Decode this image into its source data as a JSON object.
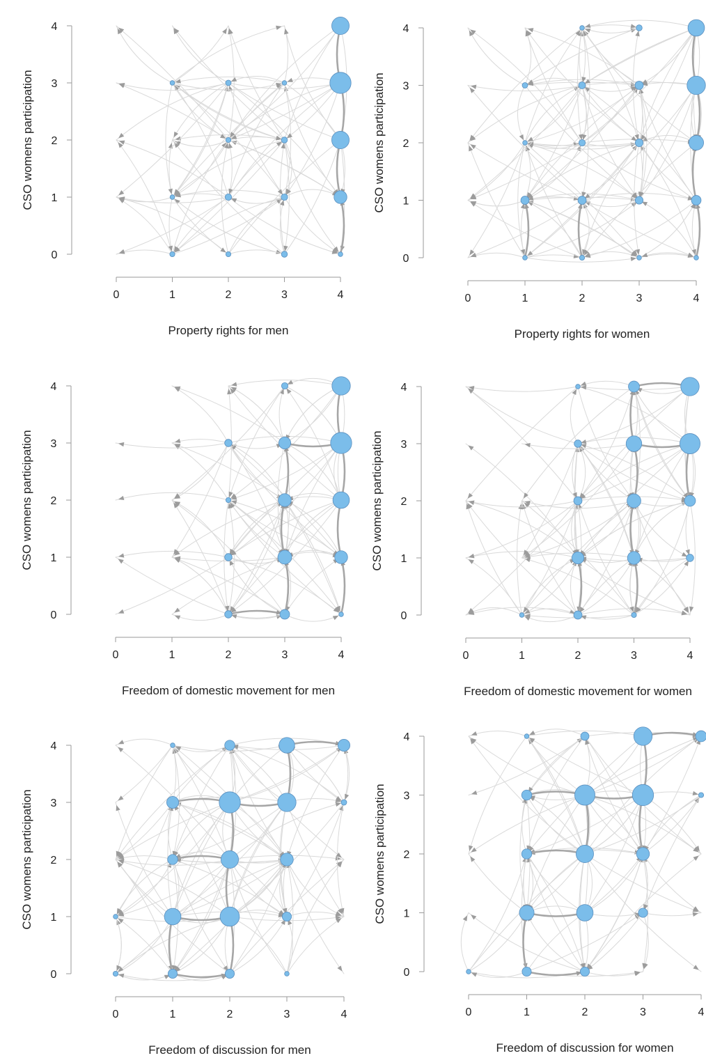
{
  "colors": {
    "node_fill": "#7bbdea",
    "node_stroke": "#5a8fbf",
    "edge_light": "#d9d9d9",
    "edge_dark": "#a6a6a6",
    "arrow": "#9c9c9c",
    "axis": "#9a9a9a"
  },
  "chart_data": [
    {
      "type": "network-grid",
      "xlabel": "Property rights for men",
      "ylabel": "CSO womens participation",
      "xticks": [
        "0",
        "1",
        "2",
        "3",
        "4"
      ],
      "yticks": [
        "0",
        "1",
        "2",
        "3",
        "4"
      ],
      "xlim": [
        0,
        4
      ],
      "ylim": [
        0,
        4
      ],
      "nodes": [
        {
          "x": 1,
          "y": 0,
          "size": 0.5
        },
        {
          "x": 2,
          "y": 0,
          "size": 0.5
        },
        {
          "x": 3,
          "y": 0,
          "size": 0.7
        },
        {
          "x": 4,
          "y": 0,
          "size": 0.4
        },
        {
          "x": 1,
          "y": 1,
          "size": 0.4
        },
        {
          "x": 2,
          "y": 1,
          "size": 0.8
        },
        {
          "x": 3,
          "y": 1,
          "size": 0.8
        },
        {
          "x": 4,
          "y": 1,
          "size": 2.2
        },
        {
          "x": 2,
          "y": 2,
          "size": 0.5
        },
        {
          "x": 3,
          "y": 2,
          "size": 0.7
        },
        {
          "x": 4,
          "y": 2,
          "size": 3.2
        },
        {
          "x": 1,
          "y": 3,
          "size": 0.4
        },
        {
          "x": 2,
          "y": 3,
          "size": 0.6
        },
        {
          "x": 3,
          "y": 3,
          "size": 0.4
        },
        {
          "x": 4,
          "y": 3,
          "size": 4.0
        },
        {
          "x": 4,
          "y": 4,
          "size": 3.2
        }
      ],
      "heavy_edges": [
        [
          4,
          0,
          4,
          1
        ],
        [
          4,
          1,
          4,
          2
        ],
        [
          4,
          2,
          4,
          3
        ],
        [
          4,
          3,
          4,
          4
        ]
      ]
    },
    {
      "type": "network-grid",
      "xlabel": "Property rights for women",
      "ylabel": "CSO womens participation",
      "xticks": [
        "0",
        "1",
        "2",
        "3",
        "4"
      ],
      "yticks": [
        "0",
        "1",
        "2",
        "3",
        "4"
      ],
      "xlim": [
        0,
        4
      ],
      "ylim": [
        0,
        4
      ],
      "nodes": [
        {
          "x": 1,
          "y": 0,
          "size": 0.4
        },
        {
          "x": 2,
          "y": 0,
          "size": 0.5
        },
        {
          "x": 3,
          "y": 0,
          "size": 0.4
        },
        {
          "x": 4,
          "y": 0,
          "size": 0.4
        },
        {
          "x": 1,
          "y": 1,
          "size": 1.2
        },
        {
          "x": 2,
          "y": 1,
          "size": 1.2
        },
        {
          "x": 3,
          "y": 1,
          "size": 1.1
        },
        {
          "x": 4,
          "y": 1,
          "size": 1.5
        },
        {
          "x": 1,
          "y": 2,
          "size": 0.4
        },
        {
          "x": 2,
          "y": 2,
          "size": 0.8
        },
        {
          "x": 3,
          "y": 2,
          "size": 1.1
        },
        {
          "x": 4,
          "y": 2,
          "size": 2.6
        },
        {
          "x": 1,
          "y": 3,
          "size": 0.6
        },
        {
          "x": 2,
          "y": 3,
          "size": 0.9
        },
        {
          "x": 3,
          "y": 3,
          "size": 1.2
        },
        {
          "x": 4,
          "y": 3,
          "size": 3.4
        },
        {
          "x": 2,
          "y": 4,
          "size": 0.4
        },
        {
          "x": 3,
          "y": 4,
          "size": 0.7
        },
        {
          "x": 4,
          "y": 4,
          "size": 3.0
        }
      ],
      "heavy_edges": [
        [
          4,
          0,
          4,
          1
        ],
        [
          4,
          1,
          4,
          2
        ],
        [
          4,
          2,
          4,
          3
        ],
        [
          4,
          3,
          4,
          4
        ],
        [
          1,
          0,
          1,
          1
        ],
        [
          2,
          0,
          2,
          1
        ]
      ]
    },
    {
      "type": "network-grid",
      "xlabel": "Freedom of domestic movement for men",
      "ylabel": "CSO womens participation",
      "xticks": [
        "0",
        "1",
        "2",
        "3",
        "4"
      ],
      "yticks": [
        "0",
        "1",
        "2",
        "3",
        "4"
      ],
      "xlim": [
        0,
        4
      ],
      "ylim": [
        0,
        4
      ],
      "nodes": [
        {
          "x": 2,
          "y": 0,
          "size": 1.0
        },
        {
          "x": 3,
          "y": 0,
          "size": 1.5
        },
        {
          "x": 4,
          "y": 0,
          "size": 0.4
        },
        {
          "x": 2,
          "y": 1,
          "size": 1.0
        },
        {
          "x": 3,
          "y": 1,
          "size": 2.4
        },
        {
          "x": 4,
          "y": 1,
          "size": 2.2
        },
        {
          "x": 2,
          "y": 2,
          "size": 0.5
        },
        {
          "x": 3,
          "y": 2,
          "size": 2.2
        },
        {
          "x": 4,
          "y": 2,
          "size": 3.0
        },
        {
          "x": 2,
          "y": 3,
          "size": 1.0
        },
        {
          "x": 3,
          "y": 3,
          "size": 2.0
        },
        {
          "x": 4,
          "y": 3,
          "size": 4.0
        },
        {
          "x": 3,
          "y": 4,
          "size": 0.8
        },
        {
          "x": 4,
          "y": 4,
          "size": 3.4
        }
      ],
      "heavy_edges": [
        [
          4,
          0,
          4,
          1
        ],
        [
          4,
          1,
          4,
          2
        ],
        [
          4,
          2,
          4,
          3
        ],
        [
          4,
          3,
          4,
          4
        ],
        [
          3,
          0,
          3,
          1
        ],
        [
          3,
          1,
          3,
          2
        ],
        [
          3,
          2,
          3,
          3
        ],
        [
          2,
          0,
          3,
          0
        ],
        [
          3,
          3,
          4,
          3
        ]
      ]
    },
    {
      "type": "network-grid",
      "xlabel": "Freedom of domestic movement for women",
      "ylabel": "CSO womens participation",
      "xticks": [
        "0",
        "1",
        "2",
        "3",
        "4"
      ],
      "yticks": [
        "0",
        "1",
        "2",
        "3",
        "4"
      ],
      "xlim": [
        0,
        4
      ],
      "ylim": [
        0,
        4
      ],
      "nodes": [
        {
          "x": 1,
          "y": 0,
          "size": 0.4
        },
        {
          "x": 2,
          "y": 0,
          "size": 1.2
        },
        {
          "x": 3,
          "y": 0,
          "size": 0.5
        },
        {
          "x": 2,
          "y": 1,
          "size": 2.0
        },
        {
          "x": 3,
          "y": 1,
          "size": 2.2
        },
        {
          "x": 4,
          "y": 1,
          "size": 1.0
        },
        {
          "x": 2,
          "y": 2,
          "size": 1.2
        },
        {
          "x": 3,
          "y": 2,
          "size": 2.4
        },
        {
          "x": 4,
          "y": 2,
          "size": 1.8
        },
        {
          "x": 2,
          "y": 3,
          "size": 1.0
        },
        {
          "x": 3,
          "y": 3,
          "size": 2.8
        },
        {
          "x": 4,
          "y": 3,
          "size": 3.8
        },
        {
          "x": 2,
          "y": 4,
          "size": 0.4
        },
        {
          "x": 3,
          "y": 4,
          "size": 1.8
        },
        {
          "x": 4,
          "y": 4,
          "size": 3.4
        }
      ],
      "heavy_edges": [
        [
          3,
          0,
          3,
          1
        ],
        [
          3,
          1,
          3,
          2
        ],
        [
          3,
          2,
          3,
          3
        ],
        [
          3,
          3,
          3,
          4
        ],
        [
          3,
          3,
          4,
          3
        ],
        [
          3,
          4,
          4,
          4
        ],
        [
          2,
          0,
          2,
          1
        ],
        [
          4,
          2,
          4,
          3
        ]
      ]
    },
    {
      "type": "network-grid",
      "xlabel": "Freedom of discussion for men",
      "ylabel": "CSO womens participation",
      "xticks": [
        "0",
        "1",
        "2",
        "3",
        "4"
      ],
      "yticks": [
        "0",
        "1",
        "2",
        "3",
        "4"
      ],
      "xlim": [
        0,
        4
      ],
      "ylim": [
        0,
        4
      ],
      "nodes": [
        {
          "x": 0,
          "y": 0,
          "size": 0.5
        },
        {
          "x": 1,
          "y": 0,
          "size": 1.4
        },
        {
          "x": 2,
          "y": 0,
          "size": 1.4
        },
        {
          "x": 3,
          "y": 0,
          "size": 0.4
        },
        {
          "x": 0,
          "y": 1,
          "size": 0.4
        },
        {
          "x": 1,
          "y": 1,
          "size": 3.0
        },
        {
          "x": 2,
          "y": 1,
          "size": 3.6
        },
        {
          "x": 3,
          "y": 1,
          "size": 1.4
        },
        {
          "x": 1,
          "y": 2,
          "size": 1.6
        },
        {
          "x": 2,
          "y": 2,
          "size": 3.2
        },
        {
          "x": 3,
          "y": 2,
          "size": 2.2
        },
        {
          "x": 1,
          "y": 3,
          "size": 2.0
        },
        {
          "x": 2,
          "y": 3,
          "size": 4.0
        },
        {
          "x": 3,
          "y": 3,
          "size": 3.4
        },
        {
          "x": 4,
          "y": 3,
          "size": 0.6
        },
        {
          "x": 1,
          "y": 4,
          "size": 0.4
        },
        {
          "x": 2,
          "y": 4,
          "size": 1.6
        },
        {
          "x": 3,
          "y": 4,
          "size": 2.8
        },
        {
          "x": 4,
          "y": 4,
          "size": 2.0
        }
      ],
      "heavy_edges": [
        [
          1,
          1,
          2,
          1
        ],
        [
          1,
          3,
          2,
          3
        ],
        [
          2,
          3,
          3,
          3
        ],
        [
          1,
          2,
          2,
          2
        ],
        [
          2,
          0,
          2,
          1
        ],
        [
          2,
          1,
          2,
          2
        ],
        [
          2,
          2,
          2,
          3
        ],
        [
          1,
          0,
          1,
          1
        ],
        [
          3,
          3,
          3,
          4
        ],
        [
          3,
          4,
          4,
          4
        ],
        [
          1,
          0,
          2,
          0
        ]
      ]
    },
    {
      "type": "network-grid",
      "xlabel": "Freedom of discussion for women",
      "ylabel": "CSO womens participation",
      "xticks": [
        "0",
        "1",
        "2",
        "3",
        "4"
      ],
      "yticks": [
        "0",
        "1",
        "2",
        "3",
        "4"
      ],
      "xlim": [
        0,
        4
      ],
      "ylim": [
        0,
        4
      ],
      "nodes": [
        {
          "x": 0,
          "y": 0,
          "size": 0.4
        },
        {
          "x": 1,
          "y": 0,
          "size": 1.4
        },
        {
          "x": 2,
          "y": 0,
          "size": 1.4
        },
        {
          "x": 1,
          "y": 1,
          "size": 2.6
        },
        {
          "x": 2,
          "y": 1,
          "size": 3.0
        },
        {
          "x": 3,
          "y": 1,
          "size": 1.4
        },
        {
          "x": 1,
          "y": 2,
          "size": 1.6
        },
        {
          "x": 2,
          "y": 2,
          "size": 3.2
        },
        {
          "x": 3,
          "y": 2,
          "size": 2.2
        },
        {
          "x": 1,
          "y": 3,
          "size": 1.6
        },
        {
          "x": 2,
          "y": 3,
          "size": 3.8
        },
        {
          "x": 3,
          "y": 3,
          "size": 4.0
        },
        {
          "x": 4,
          "y": 3,
          "size": 0.5
        },
        {
          "x": 1,
          "y": 4,
          "size": 0.4
        },
        {
          "x": 2,
          "y": 4,
          "size": 1.2
        },
        {
          "x": 3,
          "y": 4,
          "size": 3.4
        },
        {
          "x": 4,
          "y": 4,
          "size": 1.8
        }
      ],
      "heavy_edges": [
        [
          1,
          1,
          2,
          1
        ],
        [
          1,
          3,
          2,
          3
        ],
        [
          2,
          3,
          3,
          3
        ],
        [
          1,
          2,
          2,
          2
        ],
        [
          2,
          2,
          2,
          3
        ],
        [
          1,
          0,
          1,
          1
        ],
        [
          3,
          3,
          3,
          4
        ],
        [
          3,
          4,
          4,
          4
        ],
        [
          1,
          0,
          2,
          0
        ],
        [
          3,
          2,
          3,
          3
        ]
      ]
    }
  ]
}
